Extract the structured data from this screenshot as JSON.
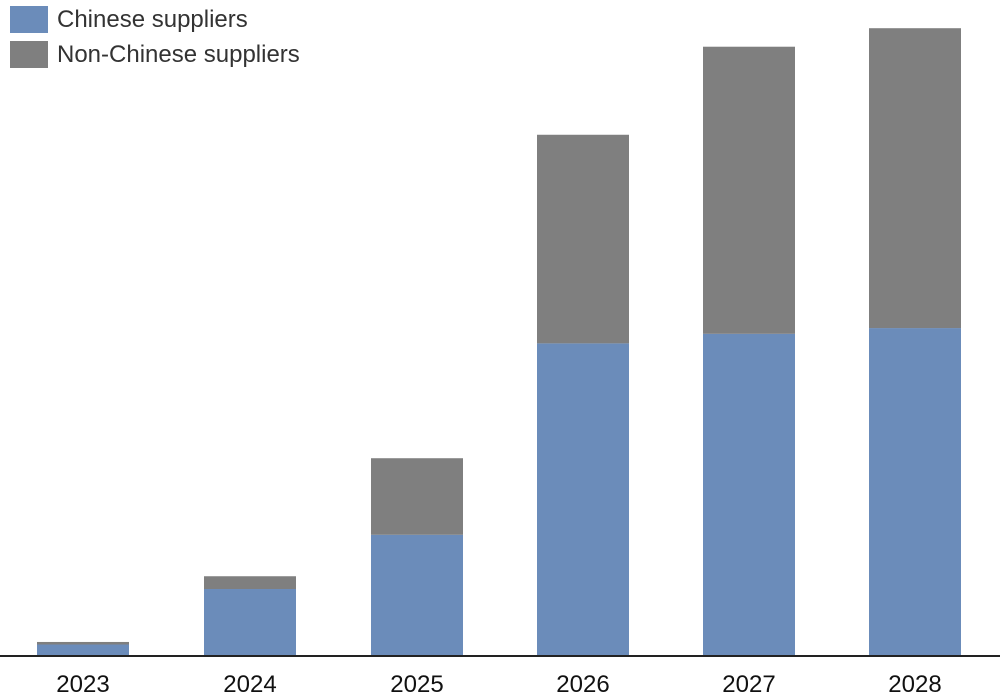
{
  "chart_data": {
    "type": "bar",
    "stacked": true,
    "categories": [
      "2023",
      "2024",
      "2025",
      "2026",
      "2027",
      "2028"
    ],
    "series": [
      {
        "name": "Chinese suppliers",
        "color": "#6b8cba",
        "values": [
          0.18,
          1.05,
          1.9,
          4.9,
          5.05,
          5.14
        ]
      },
      {
        "name": "Non-Chinese suppliers",
        "color": "#7f7f7f",
        "values": [
          0.04,
          0.2,
          1.2,
          3.27,
          4.5,
          4.7
        ]
      }
    ],
    "ylim": [
      0,
      10
    ],
    "grid": false,
    "legend_position": "top-left",
    "title": "",
    "xlabel": "",
    "ylabel": ""
  }
}
